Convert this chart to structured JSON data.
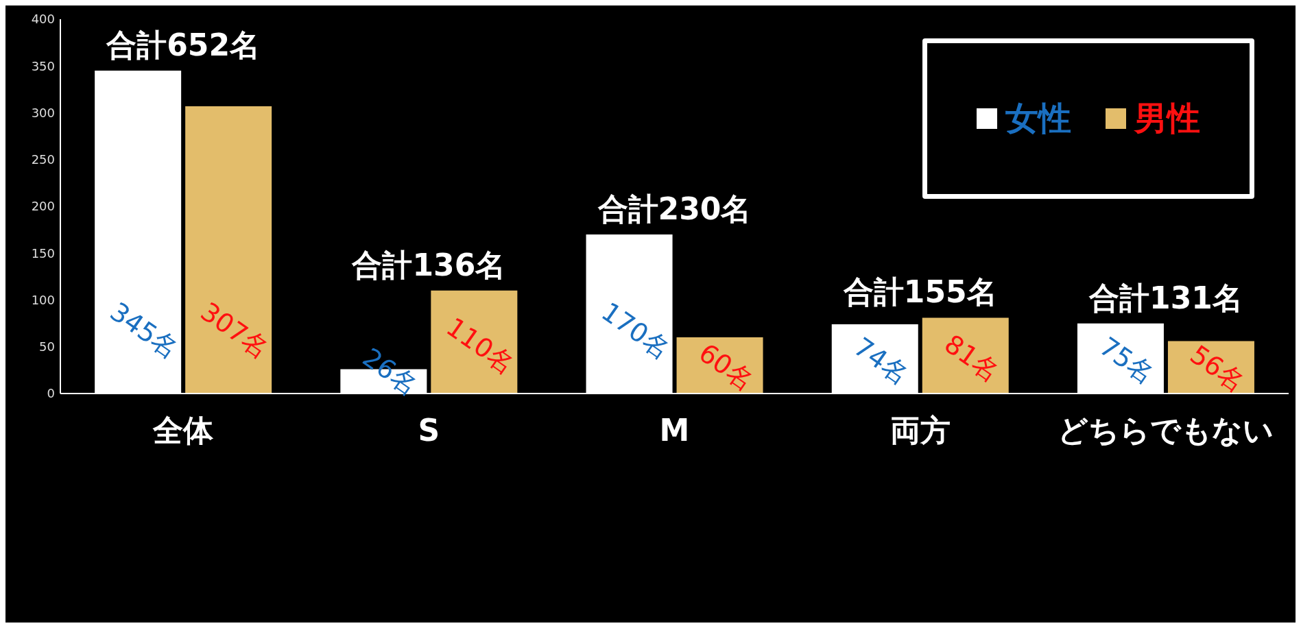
{
  "chart_data": {
    "type": "bar",
    "categories": [
      "全体",
      "S",
      "M",
      "両方",
      "どちらでもない"
    ],
    "series": [
      {
        "name": "女性",
        "color": "#ffffff",
        "values": [
          345,
          26,
          170,
          74,
          75
        ],
        "value_labels": [
          "345名",
          "26名",
          "170名",
          "74名",
          "75名"
        ]
      },
      {
        "name": "男性",
        "color": "#e3bd6b",
        "values": [
          307,
          110,
          60,
          81,
          56
        ],
        "value_labels": [
          "307名",
          "110名",
          "60名",
          "81名",
          "56名"
        ]
      }
    ],
    "totals": [
      "合計652名",
      "合計136名",
      "合計230名",
      "合計155名",
      "合計131名"
    ],
    "ylim": [
      0,
      400
    ],
    "yticks": [
      0,
      50,
      100,
      150,
      200,
      250,
      300,
      350,
      400
    ],
    "grid": false,
    "legend": "top right"
  }
}
